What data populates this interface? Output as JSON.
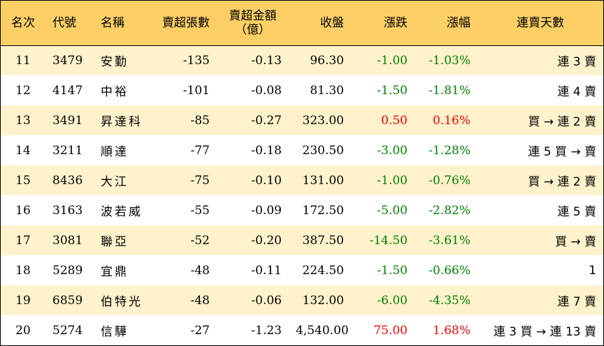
{
  "headers": {
    "rank": "名次",
    "code": "代號",
    "name": "名稱",
    "net_sell_shares": "賣超張數",
    "net_sell_amount_line1": "賣超金額",
    "net_sell_amount_line2": "（億）",
    "close": "收盤",
    "change": "漲跌",
    "change_pct": "漲幅",
    "streak": "連賣天數"
  },
  "rows": [
    {
      "rank": "11",
      "code": "3479",
      "name": "安勤",
      "shares": "-135",
      "amount": "-0.13",
      "close": "96.30",
      "change": "-1.00",
      "pct": "-1.03%",
      "streak": "連 3 賣",
      "dir": "down"
    },
    {
      "rank": "12",
      "code": "4147",
      "name": "中裕",
      "shares": "-101",
      "amount": "-0.08",
      "close": "81.30",
      "change": "-1.50",
      "pct": "-1.81%",
      "streak": "連 4 賣",
      "dir": "down"
    },
    {
      "rank": "13",
      "code": "3491",
      "name": "昇達科",
      "shares": "-85",
      "amount": "-0.27",
      "close": "323.00",
      "change": "0.50",
      "pct": "0.16%",
      "streak": "買 → 連 2 賣",
      "dir": "up"
    },
    {
      "rank": "14",
      "code": "3211",
      "name": "順達",
      "shares": "-77",
      "amount": "-0.18",
      "close": "230.50",
      "change": "-3.00",
      "pct": "-1.28%",
      "streak": "連 5 買 → 賣",
      "dir": "down"
    },
    {
      "rank": "15",
      "code": "8436",
      "name": "大江",
      "shares": "-75",
      "amount": "-0.10",
      "close": "131.00",
      "change": "-1.00",
      "pct": "-0.76%",
      "streak": "買 → 連 2 賣",
      "dir": "down"
    },
    {
      "rank": "16",
      "code": "3163",
      "name": "波若威",
      "shares": "-55",
      "amount": "-0.09",
      "close": "172.50",
      "change": "-5.00",
      "pct": "-2.82%",
      "streak": "連 5 賣",
      "dir": "down"
    },
    {
      "rank": "17",
      "code": "3081",
      "name": "聯亞",
      "shares": "-52",
      "amount": "-0.20",
      "close": "387.50",
      "change": "-14.50",
      "pct": "-3.61%",
      "streak": "買 → 賣",
      "dir": "down"
    },
    {
      "rank": "18",
      "code": "5289",
      "name": "宜鼎",
      "shares": "-48",
      "amount": "-0.11",
      "close": "224.50",
      "change": "-1.50",
      "pct": "-0.66%",
      "streak": "1",
      "dir": "down"
    },
    {
      "rank": "19",
      "code": "6859",
      "name": "伯特光",
      "shares": "-48",
      "amount": "-0.06",
      "close": "132.00",
      "change": "-6.00",
      "pct": "-4.35%",
      "streak": "連 7 賣",
      "dir": "down"
    },
    {
      "rank": "20",
      "code": "5274",
      "name": "信驊",
      "shares": "-27",
      "amount": "-1.23",
      "close": "4,540.00",
      "change": "75.00",
      "pct": "1.68%",
      "streak": "連 3 買 → 連 13 賣",
      "dir": "up"
    }
  ],
  "colors": {
    "header_bg": "#fbcf66",
    "alt_row_bg": "#fff2cc",
    "up": "#ff0000",
    "down": "#008000"
  }
}
